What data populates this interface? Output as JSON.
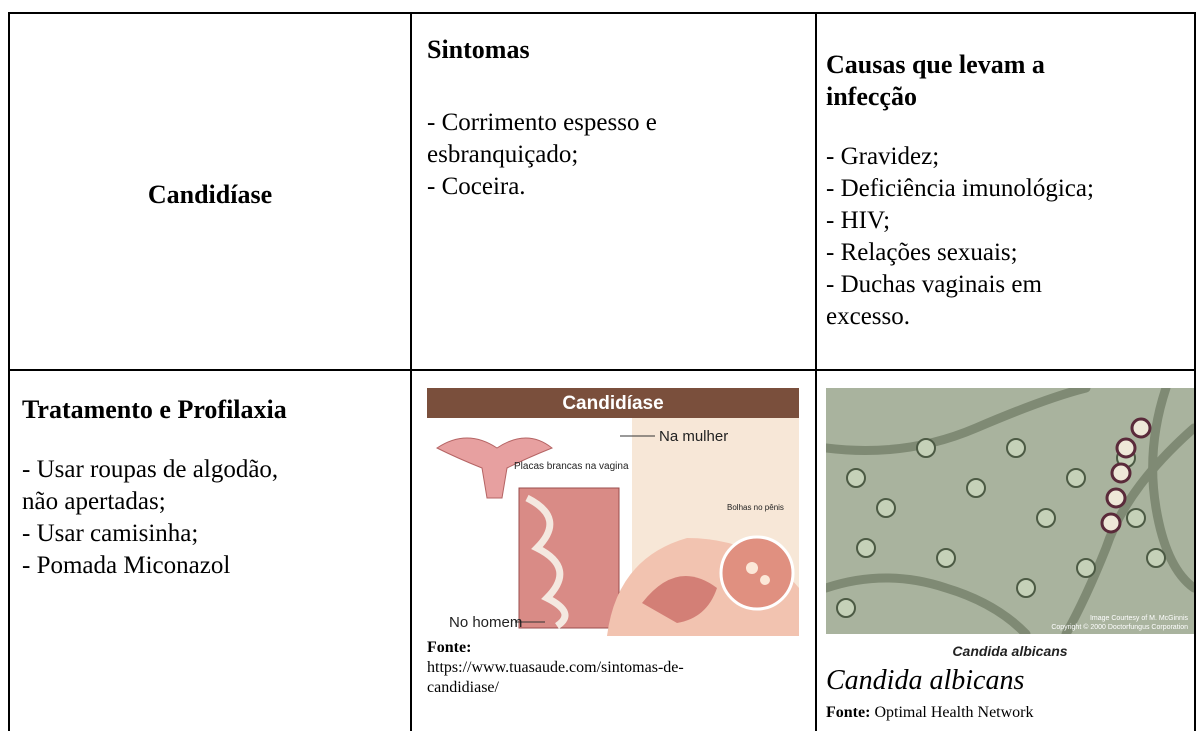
{
  "table": {
    "rows": [
      [
        {
          "title": "Candidíase"
        },
        {
          "title": "Sintomas",
          "lines": [
            "- Corrimento espesso e",
            "esbranquiçado;",
            "- Coceira."
          ]
        },
        {
          "title": [
            "Causas que levam a",
            "infecção"
          ],
          "lines": [
            "- Gravidez;",
            "- Deficiência imunológica;",
            "- HIV;",
            "- Relações sexuais;",
            "- Duchas vaginais em",
            "excesso."
          ]
        }
      ],
      [
        {
          "title": "Tratamento e Profilaxia",
          "lines": [
            "- Usar roupas de algodão,",
            "não apertadas;",
            "- Usar camisinha;",
            "- Pomada Miconazol"
          ]
        },
        {
          "image": {
            "title": "Candidíase",
            "labels": [
              "Na mulher",
              "Placas brancas na vagina",
              "Bolhas no pênis",
              "No homem"
            ]
          },
          "source_label": "Fonte:",
          "source": [
            "https://www.tuasaude.com/sintomas-de-",
            "candidiase/"
          ]
        },
        {
          "image": {
            "caption": "Candida albicans",
            "credit": [
              "Image Courtesy of M. McGinnis",
              "Copyright © 2000 Doctorfungus Corporation"
            ]
          },
          "caption": "Candida albicans",
          "source_label": "Fonte:",
          "source": "Optimal Health Network"
        }
      ]
    ]
  }
}
